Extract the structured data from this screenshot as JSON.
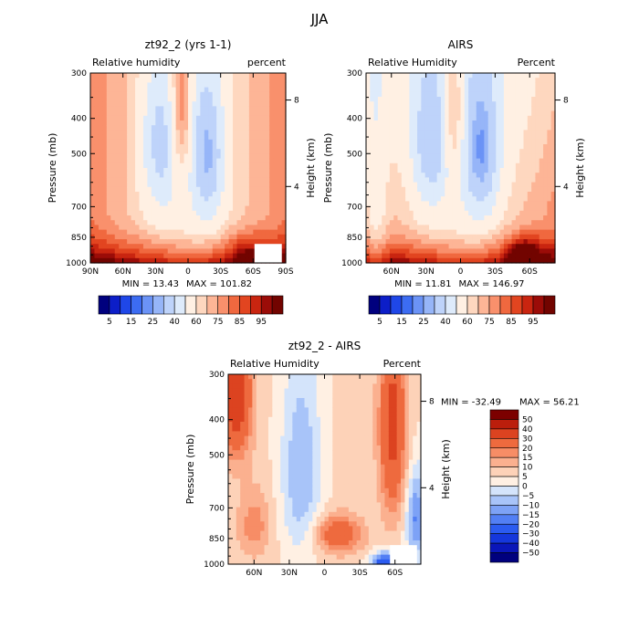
{
  "figure_title": "JJA",
  "chart_data": [
    {
      "type": "heatmap",
      "id": "p1",
      "title": "zt92_2 (yrs 1-1)",
      "left_label": "Relative humidity",
      "right_label": "percent",
      "ylabel": "Pressure (mb)",
      "ylabel_right": "Height (km)",
      "pressure_ticks": [
        "300",
        "400",
        "500",
        "700",
        "850",
        "1000"
      ],
      "height_ticks": [
        "8",
        "4"
      ],
      "lat_ticks": [
        "90N",
        "60N",
        "30N",
        "0",
        "30S",
        "60S",
        "90S"
      ],
      "lat_range": [
        90,
        -90
      ],
      "min_label": "MIN =   13.43",
      "max_label": "MAX =  101.82",
      "min": 13.43,
      "max": 101.82,
      "field": "model"
    },
    {
      "type": "heatmap",
      "id": "p2",
      "title": "AIRS",
      "left_label": "Relative Humidity",
      "right_label": "Percent",
      "ylabel": "Pressure (mb)",
      "ylabel_right": "Height (km)",
      "pressure_ticks": [
        "300",
        "400",
        "500",
        "700",
        "850",
        "1000"
      ],
      "height_ticks": [
        "8",
        "4"
      ],
      "lat_ticks": [
        "60N",
        "30N",
        "0",
        "30S",
        "60S"
      ],
      "lat_range": [
        82,
        -82
      ],
      "min_label": "MIN =   11.81",
      "max_label": "MAX =  146.97",
      "min": 11.81,
      "max": 146.97,
      "field": "obs"
    },
    {
      "type": "heatmap",
      "id": "p3",
      "title": "zt92_2 - AIRS",
      "left_label": "Relative Humidity",
      "right_label": "Percent",
      "ylabel": "Pressure (mb)",
      "ylabel_right": "Height (km)",
      "pressure_ticks": [
        "300",
        "400",
        "500",
        "700",
        "850",
        "1000"
      ],
      "height_ticks": [
        "8",
        "4"
      ],
      "lat_ticks": [
        "60N",
        "30N",
        "0",
        "30S",
        "60S"
      ],
      "lat_range": [
        82,
        -82
      ],
      "min_label": "MIN = -32.49",
      "max_label": "MAX =   56.21",
      "min": -32.49,
      "max": 56.21,
      "field": "diff"
    }
  ],
  "colorbar_abs": {
    "levels": [
      5,
      10,
      15,
      20,
      25,
      30,
      40,
      50,
      60,
      65,
      70,
      75,
      80,
      85,
      90,
      95
    ],
    "labels": [
      "5",
      "15",
      "25",
      "40",
      "60",
      "75",
      "85",
      "95"
    ],
    "colors": [
      "#00007e",
      "#0c1ec8",
      "#1f47e8",
      "#3c6cf2",
      "#6b93f6",
      "#96b5f8",
      "#bed3fa",
      "#deebfb",
      "#fff0e3",
      "#fed7bf",
      "#fdb596",
      "#f9906c",
      "#f0683f",
      "#e24520",
      "#c92510",
      "#9b0c08",
      "#720400"
    ]
  },
  "colorbar_diff": {
    "levels": [
      -50,
      -40,
      -30,
      -20,
      -15,
      -10,
      -5,
      0,
      5,
      10,
      15,
      20,
      30,
      40,
      50
    ],
    "labels": [
      "50",
      "40",
      "30",
      "20",
      "15",
      "10",
      "5",
      "0",
      "−5",
      "−10",
      "−15",
      "−20",
      "−30",
      "−40",
      "−50"
    ],
    "colors": [
      "#00007e",
      "#0a16b9",
      "#1537dc",
      "#2b5bf0",
      "#527ff4",
      "#7da2f6",
      "#a8c4f9",
      "#d4e4fb",
      "#fff0e3",
      "#fdd2b8",
      "#fbb08f",
      "#f78d66",
      "#ee6a3e",
      "#dc4320",
      "#bb1e0c",
      "#7c0000"
    ]
  }
}
